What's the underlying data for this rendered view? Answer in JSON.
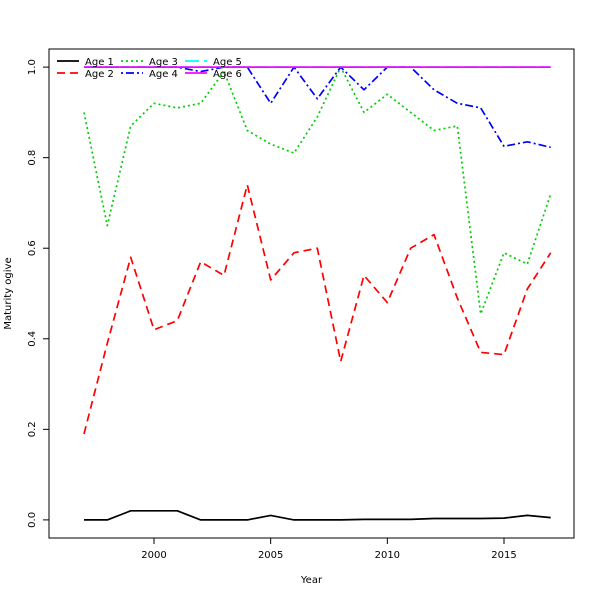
{
  "chart_data": {
    "type": "line",
    "title": "",
    "xlabel": "Year",
    "ylabel": "Maturity ogive",
    "xlim": [
      1995.5,
      2018
    ],
    "ylim": [
      -0.04,
      1.04
    ],
    "xticks": [
      2000,
      2005,
      2010,
      2015
    ],
    "yticks": [
      0.0,
      0.2,
      0.4,
      0.6,
      0.8,
      1.0
    ],
    "ytick_labels": [
      "0.0",
      "0.2",
      "0.4",
      "0.6",
      "0.8",
      "1.0"
    ],
    "grid": false,
    "legend_position": "top-left",
    "x": [
      1997,
      1998,
      1999,
      2000,
      2001,
      2002,
      2003,
      2004,
      2005,
      2006,
      2007,
      2008,
      2009,
      2010,
      2011,
      2012,
      2013,
      2014,
      2015,
      2016,
      2017
    ],
    "series": [
      {
        "name": "Age 1",
        "color": "#000000",
        "dash": "solid",
        "values": [
          0.0,
          0.0,
          0.02,
          0.02,
          0.02,
          0.0,
          0.0,
          0.0,
          0.01,
          0.0,
          0.0,
          0.0,
          0.001,
          0.001,
          0.001,
          0.003,
          0.003,
          0.003,
          0.004,
          0.01,
          0.005
        ]
      },
      {
        "name": "Age 2",
        "color": "#ff0000",
        "dash": "dashed",
        "values": [
          0.19,
          0.39,
          0.58,
          0.42,
          0.44,
          0.57,
          0.54,
          0.74,
          0.53,
          0.59,
          0.6,
          0.35,
          0.54,
          0.48,
          0.6,
          0.63,
          0.49,
          0.37,
          0.365,
          0.51,
          0.59
        ]
      },
      {
        "name": "Age 3",
        "color": "#00cd00",
        "dash": "dotted",
        "values": [
          0.9,
          0.65,
          0.87,
          0.92,
          0.91,
          0.92,
          0.99,
          0.86,
          0.83,
          0.81,
          0.89,
          1.0,
          0.9,
          0.94,
          0.9,
          0.86,
          0.87,
          0.455,
          0.59,
          0.565,
          0.72
        ]
      },
      {
        "name": "Age 4",
        "color": "#0000ff",
        "dash": "dotdash",
        "values": [
          1.0,
          1.0,
          1.0,
          1.0,
          1.0,
          0.99,
          1.0,
          1.0,
          0.92,
          1.0,
          0.93,
          1.0,
          0.95,
          1.0,
          1.0,
          0.95,
          0.92,
          0.91,
          0.825,
          0.835,
          0.823
        ]
      },
      {
        "name": "Age 5",
        "color": "#00ffff",
        "dash": "longdash",
        "values": [
          1.0,
          1.0,
          1.0,
          1.0,
          1.0,
          1.0,
          1.0,
          1.0,
          1.0,
          1.0,
          1.0,
          1.0,
          1.0,
          1.0,
          1.0,
          1.0,
          1.0,
          1.0,
          1.0,
          1.0,
          1.0
        ]
      },
      {
        "name": "Age 6",
        "color": "#ff00ff",
        "dash": "solid",
        "values": [
          1.0,
          1.0,
          1.0,
          1.0,
          1.0,
          1.0,
          1.0,
          1.0,
          1.0,
          1.0,
          1.0,
          1.0,
          1.0,
          1.0,
          1.0,
          1.0,
          1.0,
          1.0,
          1.0,
          1.0,
          1.0
        ]
      }
    ]
  }
}
